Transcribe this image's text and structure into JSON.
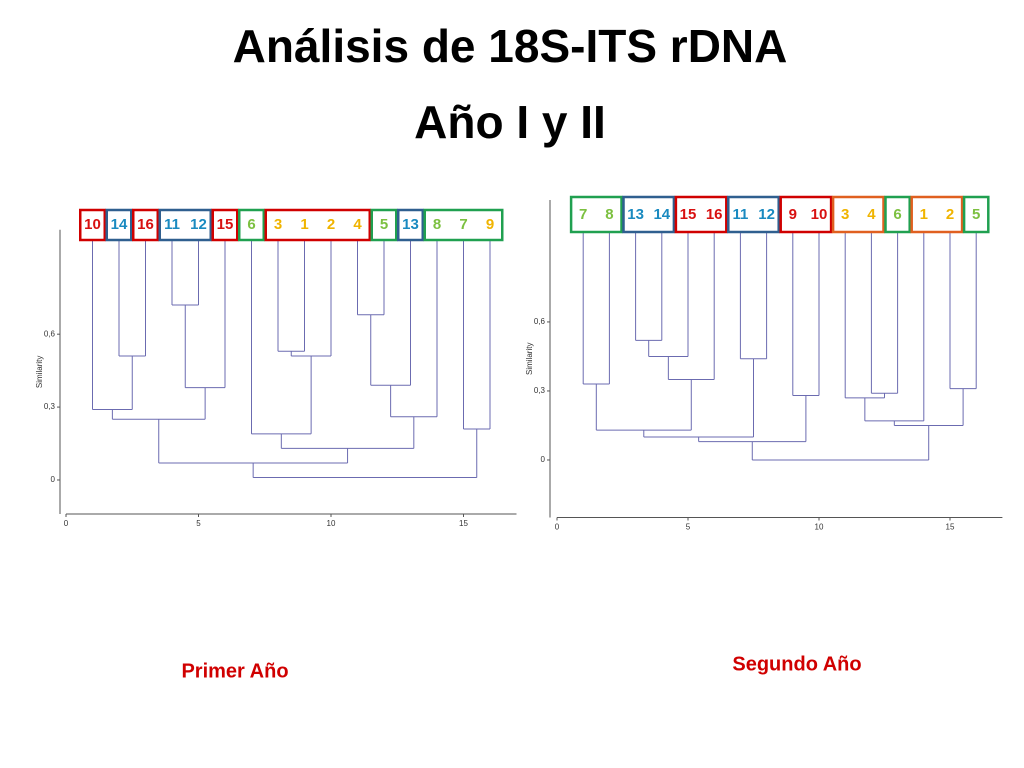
{
  "title": [
    "Análisis de 18S-ITS rDNA",
    "Año I y II"
  ],
  "chart_data": [
    {
      "type": "dendrogram",
      "caption": "Primer Año",
      "ylabel": "Similarity",
      "line_color": "#6b6bb0",
      "xlim": [
        0,
        17
      ],
      "xticks": [
        0,
        5,
        10,
        15
      ],
      "ylim": [
        -0.14,
        1.03
      ],
      "yticks": [
        0,
        {
          "value": 0.3,
          "label": "0,3"
        },
        {
          "value": 0.6,
          "label": "0,6"
        }
      ],
      "tree": {
        "height": 0.01,
        "children": [
          {
            "height": 0.07,
            "children": [
              {
                "height": 0.25,
                "children": [
                  {
                    "height": 0.29,
                    "children": [
                      {
                        "label": "10",
                        "color": "#d81010",
                        "box": "#d00000"
                      },
                      {
                        "height": 0.51,
                        "children": [
                          {
                            "label": "14",
                            "color": "#1a8ac0",
                            "box": "#2f5f8f"
                          },
                          {
                            "label": "16",
                            "color": "#d81010",
                            "box": "#d00000"
                          }
                        ]
                      }
                    ]
                  },
                  {
                    "height": 0.38,
                    "children": [
                      {
                        "height": 0.72,
                        "children": [
                          {
                            "label": "11",
                            "color": "#1a8ac0",
                            "box": "#2f5f8f"
                          },
                          {
                            "label": "12",
                            "color": "#1a8ac0",
                            "box": "#2f5f8f"
                          }
                        ]
                      },
                      {
                        "label": "15",
                        "color": "#d81010",
                        "box": "#d00000"
                      }
                    ]
                  }
                ]
              },
              {
                "height": 0.13,
                "children": [
                  {
                    "height": 0.19,
                    "children": [
                      {
                        "label": "6",
                        "color": "#7cc040",
                        "box": "#20a050"
                      },
                      {
                        "height": 0.51,
                        "children": [
                          {
                            "height": 0.53,
                            "children": [
                              {
                                "label": "3",
                                "color": "#f0b400",
                                "box": "#d00000"
                              },
                              {
                                "label": "1",
                                "color": "#f0b400",
                                "box": "#d00000"
                              }
                            ]
                          },
                          {
                            "label": "2",
                            "color": "#f0b400",
                            "box": "#d00000"
                          }
                        ]
                      }
                    ]
                  },
                  {
                    "height": 0.26,
                    "children": [
                      {
                        "height": 0.39,
                        "children": [
                          {
                            "height": 0.68,
                            "children": [
                              {
                                "label": "4",
                                "color": "#f0b400",
                                "box": "#d00000"
                              },
                              {
                                "label": "5",
                                "color": "#7cc040",
                                "box": "#20a050"
                              }
                            ]
                          },
                          {
                            "label": "13",
                            "color": "#1a8ac0",
                            "box": "#2f5f8f"
                          }
                        ]
                      },
                      {
                        "label": "8",
                        "color": "#7cc040",
                        "box": "#20a050"
                      }
                    ]
                  }
                ]
              }
            ]
          },
          {
            "height": 0.21,
            "children": [
              {
                "label": "7",
                "color": "#7cc040",
                "box": "#20a050"
              },
              {
                "label": "9",
                "color": "#f0b400",
                "box": "#20a050"
              }
            ]
          }
        ]
      }
    },
    {
      "type": "dendrogram",
      "caption": "Segundo Año",
      "ylabel": "Similarity",
      "line_color": "#6b6bb0",
      "xlim": [
        0,
        17
      ],
      "xticks": [
        0,
        5,
        10,
        15
      ],
      "ylim": [
        -0.25,
        1.13
      ],
      "yticks": [
        0,
        {
          "value": 0.3,
          "label": "0,3"
        },
        {
          "value": 0.6,
          "label": "0,6"
        }
      ],
      "tree": {
        "height": 0,
        "children": [
          {
            "height": 0.08,
            "children": [
              {
                "height": 0.1,
                "children": [
                  {
                    "height": 0.13,
                    "children": [
                      {
                        "height": 0.33,
                        "children": [
                          {
                            "label": "7",
                            "color": "#7cc040",
                            "box": "#20a050"
                          },
                          {
                            "label": "8",
                            "color": "#7cc040",
                            "box": "#20a050"
                          }
                        ]
                      },
                      {
                        "height": 0.35,
                        "children": [
                          {
                            "height": 0.45,
                            "children": [
                              {
                                "height": 0.52,
                                "children": [
                                  {
                                    "label": "13",
                                    "color": "#1a8ac0",
                                    "box": "#2f5f8f"
                                  },
                                  {
                                    "label": "14",
                                    "color": "#1a8ac0",
                                    "box": "#2f5f8f"
                                  }
                                ]
                              },
                              {
                                "label": "15",
                                "color": "#d81010",
                                "box": "#d00000"
                              }
                            ]
                          },
                          {
                            "label": "16",
                            "color": "#d81010",
                            "box": "#d00000"
                          }
                        ]
                      }
                    ]
                  },
                  {
                    "height": 0.44,
                    "children": [
                      {
                        "label": "11",
                        "color": "#1a8ac0",
                        "box": "#2f5f8f"
                      },
                      {
                        "label": "12",
                        "color": "#1a8ac0",
                        "box": "#2f5f8f"
                      }
                    ]
                  }
                ]
              },
              {
                "height": 0.28,
                "children": [
                  {
                    "label": "9",
                    "color": "#d81010",
                    "box": "#d00000"
                  },
                  {
                    "label": "10",
                    "color": "#d81010",
                    "box": "#d00000"
                  }
                ]
              }
            ]
          },
          {
            "height": 0.15,
            "children": [
              {
                "height": 0.17,
                "children": [
                  {
                    "height": 0.27,
                    "children": [
                      {
                        "label": "3",
                        "color": "#f0b400",
                        "box": "#e06020"
                      },
                      {
                        "height": 0.29,
                        "children": [
                          {
                            "label": "4",
                            "color": "#f0b400",
                            "box": "#e06020"
                          },
                          {
                            "label": "6",
                            "color": "#7cc040",
                            "box": "#20a050"
                          }
                        ]
                      }
                    ]
                  },
                  {
                    "label": "1",
                    "color": "#f0b400",
                    "box": "#e06020"
                  }
                ]
              },
              {
                "height": 0.31,
                "children": [
                  {
                    "label": "2",
                    "color": "#f0b400",
                    "box": "#e06020"
                  },
                  {
                    "label": "5",
                    "color": "#7cc040",
                    "box": "#20a050"
                  }
                ]
              }
            ]
          }
        ]
      }
    }
  ]
}
